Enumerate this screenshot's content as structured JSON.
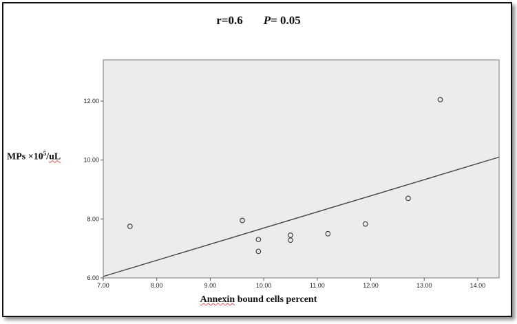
{
  "annotation": {
    "r_text": "r=0.6",
    "p_symbol": "P",
    "p_value_text": "= 0.05"
  },
  "y_label": {
    "prefix": "MPs ×10",
    "exponent": "5",
    "suffix": "/",
    "unit": "uL"
  },
  "x_label": {
    "first": "Annexin",
    "rest": " bound cells percent"
  },
  "chart_data": {
    "type": "scatter",
    "title": "",
    "xlabel": "Annexin bound cells percent",
    "ylabel": "MPs ×10^5/uL",
    "xlim": [
      7.0,
      14.4
    ],
    "ylim": [
      6.0,
      13.4
    ],
    "xticks": [
      7.0,
      8.0,
      9.0,
      10.0,
      11.0,
      12.0,
      13.0,
      14.0
    ],
    "xtick_labels": [
      "7.00",
      "8.00",
      "9.00",
      "10.00",
      "11.00",
      "12.00",
      "13.00",
      "14.00"
    ],
    "yticks": [
      6.0,
      8.0,
      10.0,
      12.0
    ],
    "ytick_labels": [
      "6.00",
      "8.00",
      "10.00",
      "12.00"
    ],
    "grid": false,
    "background_color": "#ececec",
    "marker_color": "#333333",
    "points": [
      {
        "x": 7.5,
        "y": 7.75
      },
      {
        "x": 9.6,
        "y": 7.95
      },
      {
        "x": 9.9,
        "y": 7.3
      },
      {
        "x": 9.9,
        "y": 6.9
      },
      {
        "x": 10.5,
        "y": 7.45
      },
      {
        "x": 10.5,
        "y": 7.28
      },
      {
        "x": 11.2,
        "y": 7.5
      },
      {
        "x": 11.9,
        "y": 7.83
      },
      {
        "x": 12.7,
        "y": 8.7
      },
      {
        "x": 13.3,
        "y": 12.05
      }
    ],
    "fit_line": {
      "x": [
        7.0,
        14.4
      ],
      "y": [
        6.05,
        10.1
      ]
    }
  }
}
